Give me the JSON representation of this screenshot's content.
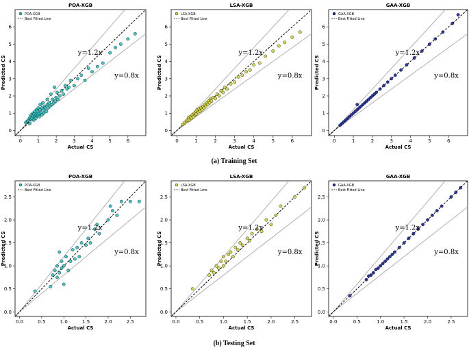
{
  "captions": {
    "training": "(a) Training Set",
    "testing": "(b) Testing Set"
  },
  "colors": {
    "POA": "#2ec4c4",
    "LSA": "#d4d43a",
    "GAA": "#1a2a9a",
    "edge": "#000000",
    "ref": "#b0b0b0",
    "fit": "#000000"
  },
  "chart_data": [
    {
      "type": "scatter",
      "row": "training",
      "col": 0,
      "title": "POA-XGB",
      "legend": [
        "POA-XGB",
        "Best Fitted Line"
      ],
      "legend_position": "top-left",
      "xlabel": "Actual CS",
      "ylabel": "Predicted CS",
      "xlim": [
        -0.3,
        7.0
      ],
      "ylim": [
        -0.3,
        7.0
      ],
      "xticks": [
        0,
        1,
        2,
        3,
        4,
        5,
        6
      ],
      "yticks": [
        0,
        1,
        2,
        3,
        4,
        5,
        6
      ],
      "annotations": [
        "y=1.2x",
        "y=0.8x"
      ],
      "points": [
        [
          0.3,
          0.45
        ],
        [
          0.35,
          0.5
        ],
        [
          0.4,
          0.55
        ],
        [
          0.45,
          0.6
        ],
        [
          0.5,
          0.7
        ],
        [
          0.52,
          0.4
        ],
        [
          0.55,
          0.8
        ],
        [
          0.6,
          0.65
        ],
        [
          0.6,
          0.9
        ],
        [
          0.65,
          0.7
        ],
        [
          0.7,
          0.85
        ],
        [
          0.7,
          1.0
        ],
        [
          0.75,
          0.6
        ],
        [
          0.75,
          0.95
        ],
        [
          0.8,
          0.8
        ],
        [
          0.8,
          1.1
        ],
        [
          0.85,
          0.9
        ],
        [
          0.85,
          0.7
        ],
        [
          0.9,
          1.0
        ],
        [
          0.9,
          1.2
        ],
        [
          0.95,
          0.85
        ],
        [
          0.95,
          1.1
        ],
        [
          1.0,
          0.9
        ],
        [
          1.0,
          1.3
        ],
        [
          1.05,
          1.0
        ],
        [
          1.05,
          0.8
        ],
        [
          1.1,
          1.2
        ],
        [
          1.1,
          1.5
        ],
        [
          1.15,
          1.05
        ],
        [
          1.2,
          1.3
        ],
        [
          1.2,
          0.9
        ],
        [
          1.25,
          1.6
        ],
        [
          1.3,
          1.2
        ],
        [
          1.3,
          1.0
        ],
        [
          1.35,
          1.4
        ],
        [
          1.4,
          1.3
        ],
        [
          1.45,
          1.1
        ],
        [
          1.5,
          1.5
        ],
        [
          1.5,
          1.8
        ],
        [
          1.55,
          1.3
        ],
        [
          1.6,
          1.6
        ],
        [
          1.65,
          1.4
        ],
        [
          1.7,
          2.1
        ],
        [
          1.75,
          1.5
        ],
        [
          1.8,
          1.8
        ],
        [
          1.85,
          1.6
        ],
        [
          1.9,
          2.5
        ],
        [
          1.95,
          1.7
        ],
        [
          2.0,
          1.9
        ],
        [
          2.05,
          2.2
        ],
        [
          2.1,
          1.8
        ],
        [
          2.2,
          2.0
        ],
        [
          2.3,
          2.3
        ],
        [
          2.4,
          2.1
        ],
        [
          2.5,
          2.6
        ],
        [
          2.6,
          2.4
        ],
        [
          2.7,
          2.5
        ],
        [
          2.8,
          2.9
        ],
        [
          3.0,
          2.6
        ],
        [
          3.2,
          3.0
        ],
        [
          3.4,
          3.2
        ],
        [
          3.6,
          2.9
        ],
        [
          3.8,
          3.6
        ],
        [
          4.0,
          3.4
        ],
        [
          4.3,
          3.7
        ],
        [
          4.6,
          3.9
        ],
        [
          5.0,
          4.5
        ],
        [
          5.3,
          4.8
        ],
        [
          5.6,
          5.0
        ],
        [
          6.0,
          5.3
        ],
        [
          6.4,
          5.6
        ]
      ]
    },
    {
      "type": "scatter",
      "row": "training",
      "col": 1,
      "title": "LSA-XGB",
      "legend": [
        "LSA-XGB",
        "Best Fitted Line"
      ],
      "legend_position": "top-left",
      "xlabel": "Actual CS",
      "ylabel": "Predicted CS",
      "xlim": [
        -0.3,
        7.0
      ],
      "ylim": [
        -0.3,
        7.0
      ],
      "xticks": [
        0,
        1,
        2,
        3,
        4,
        5,
        6
      ],
      "yticks": [
        0,
        1,
        2,
        3,
        4,
        5,
        6
      ],
      "annotations": [
        "y=1.2x",
        "y=0.8x"
      ],
      "points": [
        [
          0.3,
          0.35
        ],
        [
          0.4,
          0.45
        ],
        [
          0.5,
          0.55
        ],
        [
          0.55,
          0.6
        ],
        [
          0.6,
          0.75
        ],
        [
          0.65,
          0.6
        ],
        [
          0.7,
          0.8
        ],
        [
          0.75,
          0.7
        ],
        [
          0.8,
          0.9
        ],
        [
          0.85,
          0.8
        ],
        [
          0.9,
          1.0
        ],
        [
          0.95,
          0.9
        ],
        [
          1.0,
          1.1
        ],
        [
          1.0,
          0.95
        ],
        [
          1.05,
          1.2
        ],
        [
          1.1,
          1.05
        ],
        [
          1.15,
          1.25
        ],
        [
          1.2,
          1.1
        ],
        [
          1.25,
          1.3
        ],
        [
          1.3,
          1.2
        ],
        [
          1.35,
          1.4
        ],
        [
          1.4,
          1.3
        ],
        [
          1.45,
          1.5
        ],
        [
          1.5,
          1.4
        ],
        [
          1.55,
          1.6
        ],
        [
          1.6,
          1.5
        ],
        [
          1.65,
          1.7
        ],
        [
          1.7,
          1.6
        ],
        [
          1.75,
          1.85
        ],
        [
          1.8,
          1.7
        ],
        [
          1.9,
          1.9
        ],
        [
          2.0,
          1.85
        ],
        [
          2.1,
          2.1
        ],
        [
          2.2,
          2.0
        ],
        [
          2.3,
          2.3
        ],
        [
          2.4,
          2.2
        ],
        [
          2.5,
          2.5
        ],
        [
          2.6,
          2.4
        ],
        [
          2.8,
          2.7
        ],
        [
          3.0,
          2.8
        ],
        [
          3.2,
          3.1
        ],
        [
          3.4,
          3.2
        ],
        [
          3.6,
          3.4
        ],
        [
          3.8,
          3.5
        ],
        [
          4.0,
          3.8
        ],
        [
          4.3,
          3.9
        ],
        [
          4.6,
          4.3
        ],
        [
          5.0,
          4.6
        ],
        [
          5.3,
          4.9
        ],
        [
          5.6,
          5.1
        ],
        [
          6.0,
          5.4
        ],
        [
          6.4,
          5.7
        ]
      ]
    },
    {
      "type": "scatter",
      "row": "training",
      "col": 2,
      "title": "GAA-XGB",
      "legend": [
        "GAA-XGB",
        "Best Fitted Line"
      ],
      "legend_position": "top-left",
      "xlabel": "Actual CS",
      "ylabel": "Predicted CS",
      "xlim": [
        -0.3,
        7.0
      ],
      "ylim": [
        -0.3,
        7.0
      ],
      "xticks": [
        0,
        1,
        2,
        3,
        4,
        5,
        6
      ],
      "yticks": [
        0,
        1,
        2,
        3,
        4,
        5,
        6
      ],
      "annotations": [
        "y=1.2x",
        "y=0.8x"
      ],
      "points": [
        [
          0.3,
          0.3
        ],
        [
          0.4,
          0.4
        ],
        [
          0.5,
          0.5
        ],
        [
          0.6,
          0.6
        ],
        [
          0.7,
          0.7
        ],
        [
          0.8,
          0.8
        ],
        [
          0.9,
          0.9
        ],
        [
          1.0,
          1.0
        ],
        [
          1.1,
          1.1
        ],
        [
          1.2,
          1.2
        ],
        [
          1.2,
          1.5
        ],
        [
          1.3,
          1.3
        ],
        [
          1.4,
          1.4
        ],
        [
          1.5,
          1.5
        ],
        [
          1.6,
          1.6
        ],
        [
          1.7,
          1.7
        ],
        [
          1.8,
          1.8
        ],
        [
          1.9,
          1.9
        ],
        [
          2.0,
          2.0
        ],
        [
          2.1,
          2.1
        ],
        [
          2.2,
          2.2
        ],
        [
          2.4,
          2.4
        ],
        [
          2.6,
          2.6
        ],
        [
          2.8,
          2.8
        ],
        [
          3.0,
          3.0
        ],
        [
          3.2,
          3.2
        ],
        [
          3.5,
          3.5
        ],
        [
          3.8,
          3.8
        ],
        [
          4.2,
          4.2
        ],
        [
          4.6,
          4.6
        ],
        [
          5.0,
          5.0
        ],
        [
          5.3,
          5.3
        ],
        [
          5.7,
          5.7
        ],
        [
          6.2,
          6.2
        ],
        [
          6.5,
          6.7
        ]
      ]
    },
    {
      "type": "scatter",
      "row": "testing",
      "col": 0,
      "title": "POA-XGB",
      "legend": [
        "POA-XGB",
        "Best Fitted Line"
      ],
      "legend_position": "top-left",
      "xlabel": "Actual CS",
      "ylabel": "Predicted CS",
      "xlim": [
        -0.1,
        2.85
      ],
      "ylim": [
        -0.1,
        2.85
      ],
      "xticks": [
        0.0,
        0.5,
        1.0,
        1.5,
        2.0,
        2.5
      ],
      "yticks": [
        0.0,
        0.5,
        1.0,
        1.5,
        2.0,
        2.5
      ],
      "annotations": [
        "y=1.2x",
        "y=0.8x"
      ],
      "points": [
        [
          0.35,
          0.45
        ],
        [
          0.7,
          0.55
        ],
        [
          0.75,
          0.8
        ],
        [
          0.8,
          0.9
        ],
        [
          0.85,
          1.0
        ],
        [
          0.85,
          0.75
        ],
        [
          0.9,
          1.3
        ],
        [
          0.9,
          0.85
        ],
        [
          0.95,
          1.1
        ],
        [
          0.95,
          0.95
        ],
        [
          1.0,
          1.0
        ],
        [
          1.0,
          0.6
        ],
        [
          1.05,
          1.2
        ],
        [
          1.1,
          0.9
        ],
        [
          1.15,
          1.1
        ],
        [
          1.2,
          1.35
        ],
        [
          1.25,
          1.15
        ],
        [
          1.3,
          1.4
        ],
        [
          1.35,
          1.2
        ],
        [
          1.4,
          1.5
        ],
        [
          1.5,
          1.45
        ],
        [
          1.55,
          1.6
        ],
        [
          1.6,
          1.5
        ],
        [
          1.7,
          1.8
        ],
        [
          1.75,
          1.9
        ],
        [
          1.8,
          1.7
        ],
        [
          2.0,
          2.0
        ],
        [
          2.05,
          2.3
        ],
        [
          2.1,
          2.2
        ],
        [
          2.2,
          2.1
        ],
        [
          2.3,
          2.4
        ],
        [
          2.5,
          2.4
        ],
        [
          2.7,
          2.4
        ]
      ]
    },
    {
      "type": "scatter",
      "row": "testing",
      "col": 1,
      "title": "LSA-XGB",
      "legend": [
        "LSA-XGB",
        "Best Fitted Line"
      ],
      "legend_position": "top-left",
      "xlabel": "Actual CS",
      "ylabel": "Predicted CS",
      "xlim": [
        -0.1,
        2.85
      ],
      "ylim": [
        -0.1,
        2.85
      ],
      "xticks": [
        0.0,
        0.5,
        1.0,
        1.5,
        2.0,
        2.5
      ],
      "yticks": [
        0.0,
        0.5,
        1.0,
        1.5,
        2.0,
        2.5
      ],
      "annotations": [
        "y=1.2x",
        "y=0.8x"
      ],
      "points": [
        [
          0.35,
          0.5
        ],
        [
          0.7,
          0.8
        ],
        [
          0.75,
          0.9
        ],
        [
          0.8,
          0.85
        ],
        [
          0.85,
          1.0
        ],
        [
          0.9,
          0.95
        ],
        [
          0.95,
          1.1
        ],
        [
          1.0,
          1.0
        ],
        [
          1.0,
          1.2
        ],
        [
          1.05,
          1.1
        ],
        [
          1.1,
          1.25
        ],
        [
          1.15,
          1.3
        ],
        [
          1.2,
          1.2
        ],
        [
          1.25,
          1.4
        ],
        [
          1.3,
          1.35
        ],
        [
          1.35,
          1.5
        ],
        [
          1.4,
          1.45
        ],
        [
          1.5,
          1.6
        ],
        [
          1.55,
          1.55
        ],
        [
          1.6,
          1.7
        ],
        [
          1.7,
          1.8
        ],
        [
          1.8,
          1.75
        ],
        [
          1.9,
          2.0
        ],
        [
          2.0,
          1.9
        ],
        [
          2.1,
          2.1
        ],
        [
          2.2,
          2.3
        ],
        [
          2.5,
          2.5
        ],
        [
          2.7,
          2.7
        ]
      ]
    },
    {
      "type": "scatter",
      "row": "testing",
      "col": 2,
      "title": "GAA-XGB",
      "legend": [
        "GAA-XGB",
        "Best Fitted Line"
      ],
      "legend_position": "top-left",
      "xlabel": "Actual CS",
      "ylabel": "Predicted CS",
      "xlim": [
        -0.1,
        2.85
      ],
      "ylim": [
        -0.1,
        2.85
      ],
      "xticks": [
        0.0,
        0.5,
        1.0,
        1.5,
        2.0,
        2.5
      ],
      "yticks": [
        0.0,
        0.5,
        1.0,
        1.5,
        2.0,
        2.5
      ],
      "annotations": [
        "y=1.2x",
        "y=0.8x"
      ],
      "points": [
        [
          0.35,
          0.35
        ],
        [
          0.7,
          0.7
        ],
        [
          0.75,
          0.78
        ],
        [
          0.8,
          0.8
        ],
        [
          0.85,
          0.85
        ],
        [
          0.9,
          0.92
        ],
        [
          0.95,
          0.95
        ],
        [
          1.0,
          1.0
        ],
        [
          1.05,
          1.05
        ],
        [
          1.1,
          1.1
        ],
        [
          1.15,
          1.15
        ],
        [
          1.2,
          1.2
        ],
        [
          1.25,
          1.25
        ],
        [
          1.3,
          1.3
        ],
        [
          1.4,
          1.4
        ],
        [
          1.5,
          1.5
        ],
        [
          1.6,
          1.6
        ],
        [
          1.7,
          1.7
        ],
        [
          1.8,
          1.8
        ],
        [
          1.9,
          1.9
        ],
        [
          2.0,
          2.0
        ],
        [
          2.1,
          2.1
        ],
        [
          2.2,
          2.2
        ],
        [
          2.3,
          2.3
        ],
        [
          2.5,
          2.5
        ],
        [
          2.6,
          2.6
        ],
        [
          2.7,
          2.7
        ]
      ]
    }
  ]
}
